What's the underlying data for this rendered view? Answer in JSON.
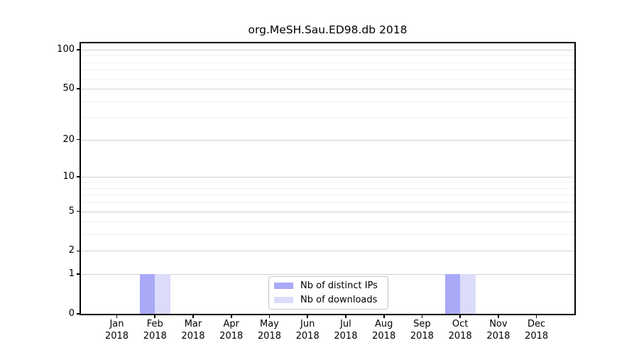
{
  "chart_data": {
    "type": "bar",
    "title": "org.MeSH.Sau.ED98.db 2018",
    "year": "2018",
    "categories": [
      "Jan",
      "Feb",
      "Mar",
      "Apr",
      "May",
      "Jun",
      "Jul",
      "Aug",
      "Sep",
      "Oct",
      "Nov",
      "Dec"
    ],
    "series": [
      {
        "name": "Nb of distinct IPs",
        "color": "#a9a9f7",
        "values": [
          0,
          1,
          0,
          0,
          0,
          0,
          0,
          0,
          0,
          1,
          0,
          0
        ]
      },
      {
        "name": "Nb of downloads",
        "color": "#dbdbfa",
        "values": [
          0,
          1,
          0,
          0,
          0,
          0,
          0,
          0,
          0,
          1,
          0,
          0
        ]
      }
    ],
    "yscale": "log1p",
    "ylim": [
      0,
      100
    ],
    "yticks": [
      0,
      1,
      2,
      5,
      10,
      20,
      50,
      100
    ],
    "minor_gridlines": [
      3,
      4,
      6,
      7,
      8,
      9,
      30,
      40,
      60,
      70,
      80,
      90
    ],
    "grid": "horizontal",
    "legend_position": "bottom-center"
  },
  "colors": {
    "grid_major": "#d2d2d2",
    "grid_minor": "#efefef",
    "axis": "#000000",
    "background": "#ffffff"
  }
}
